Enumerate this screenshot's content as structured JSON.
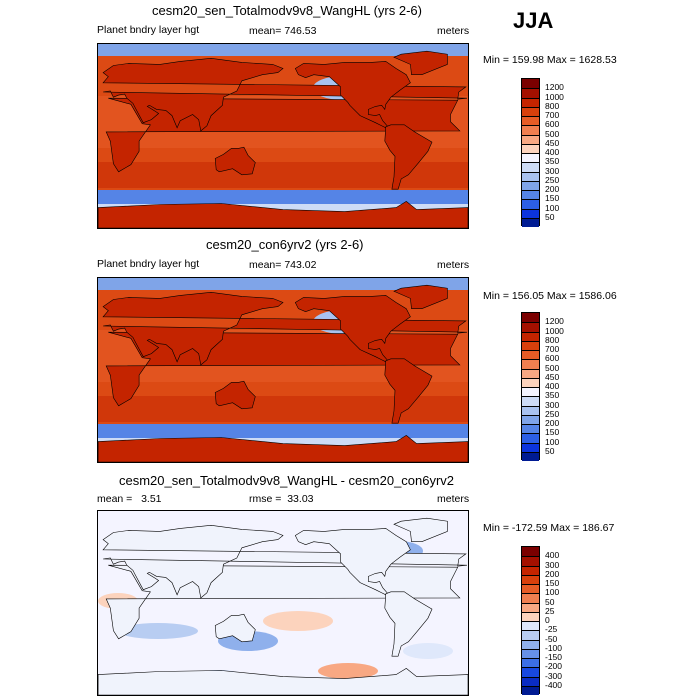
{
  "season": "JJA",
  "chart_data": [
    {
      "type": "heatmap",
      "title": "cesm20_sen_Totalmodv9v8_WangHL (yrs 2-6)",
      "left_label": "Planet bndry layer hgt",
      "center_label": "mean= 746.53",
      "right_label": "meters",
      "minmax": "Min = 159.98 Max = 1628.53",
      "colorbar": {
        "labels": [
          "1200",
          "1000",
          "800",
          "700",
          "600",
          "500",
          "450",
          "400",
          "350",
          "300",
          "250",
          "200",
          "150",
          "100",
          "50"
        ],
        "colors": [
          "#7b0000",
          "#a41000",
          "#c42400",
          "#d8400c",
          "#e65c26",
          "#f07f50",
          "#f8a883",
          "#fcd3bd",
          "#f4f4ff",
          "#cddbf6",
          "#a9c2ef",
          "#7fa4e8",
          "#5584e6",
          "#2c5fe6",
          "#0c34dd",
          "#001b93"
        ]
      }
    },
    {
      "type": "heatmap",
      "title": "cesm20_con6yrv2 (yrs 2-6)",
      "left_label": "Planet bndry layer hgt",
      "center_label": "mean= 743.02",
      "right_label": "meters",
      "minmax": "Min = 156.05 Max = 1586.06",
      "colorbar": {
        "labels": [
          "1200",
          "1000",
          "800",
          "700",
          "600",
          "500",
          "450",
          "400",
          "350",
          "300",
          "250",
          "200",
          "150",
          "100",
          "50"
        ],
        "colors": [
          "#7b0000",
          "#a41000",
          "#c42400",
          "#d8400c",
          "#e65c26",
          "#f07f50",
          "#f8a883",
          "#fcd3bd",
          "#f4f4ff",
          "#cddbf6",
          "#a9c2ef",
          "#7fa4e8",
          "#5584e6",
          "#2c5fe6",
          "#0c34dd",
          "#001b93"
        ]
      }
    },
    {
      "type": "heatmap",
      "title": "cesm20_sen_Totalmodv9v8_WangHL - cesm20_con6yrv2",
      "left_label": "mean =   3.51",
      "center_label": "rmse =  33.03",
      "right_label": "meters",
      "minmax": "Min = -172.59 Max = 186.67",
      "colorbar": {
        "labels": [
          "400",
          "300",
          "200",
          "150",
          "100",
          "50",
          "25",
          "0",
          "-25",
          "-50",
          "-100",
          "-150",
          "-200",
          "-300",
          "-400"
        ],
        "colors": [
          "#7b0000",
          "#a41000",
          "#c42400",
          "#d8400c",
          "#e65c26",
          "#f07f50",
          "#f8a883",
          "#fcd3bd",
          "#dfe8fb",
          "#b8cdf2",
          "#8fb0ec",
          "#6690e7",
          "#3c6fe6",
          "#1848e0",
          "#0a2cc4",
          "#001b93"
        ]
      }
    }
  ]
}
